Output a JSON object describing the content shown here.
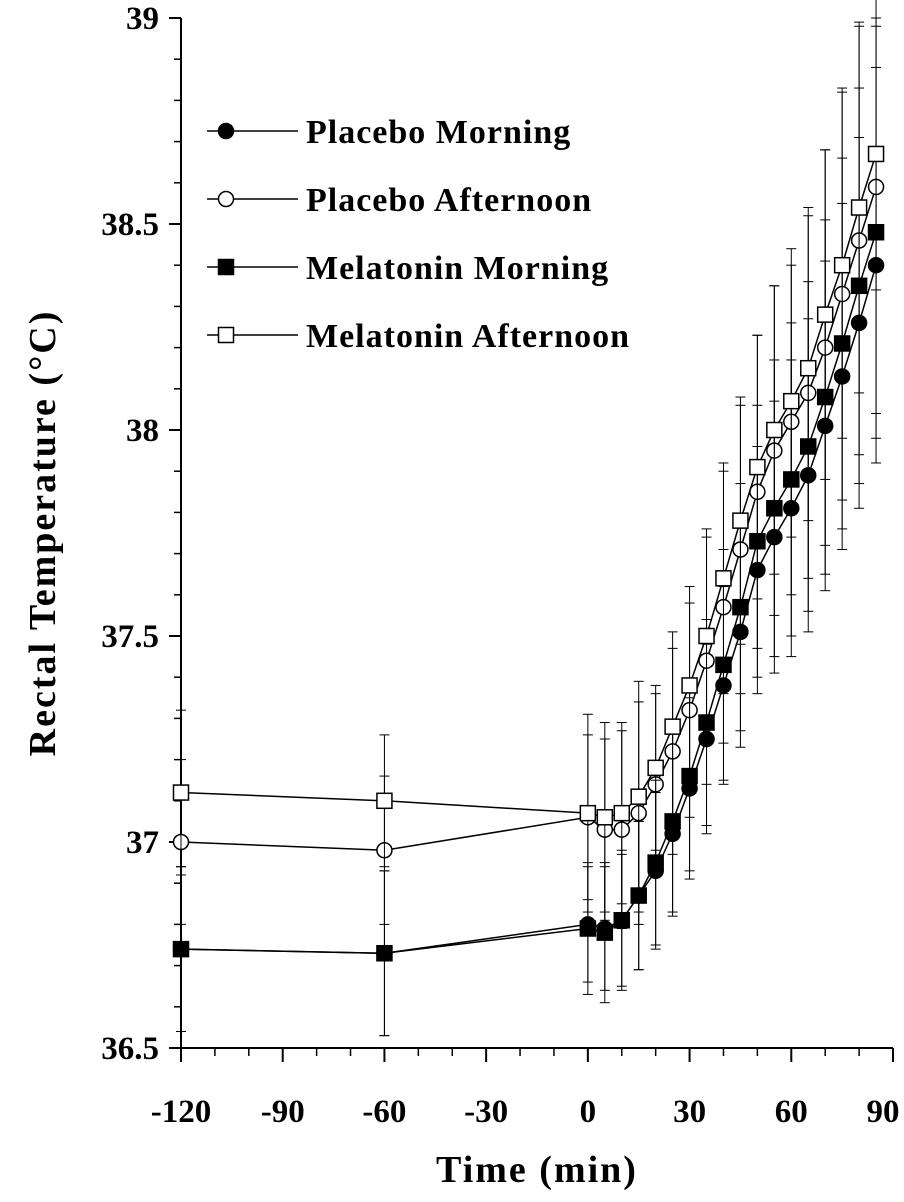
{
  "chart_data": {
    "type": "line",
    "xlabel": "Time (min)",
    "ylabel": "Rectal Temperature (°C)",
    "xlim": [
      -120,
      90
    ],
    "ylim": [
      36.5,
      39
    ],
    "x_ticks": [
      -120,
      -90,
      -60,
      -30,
      0,
      30,
      60,
      90
    ],
    "x_tick_labels": [
      "-120",
      "-90",
      "-60",
      "-30",
      "0",
      "30",
      "60",
      "90"
    ],
    "y_ticks": [
      36.5,
      37,
      37.5,
      38,
      38.5,
      39
    ],
    "y_tick_labels": [
      "36.5",
      "37",
      "37.5",
      "38",
      "38.5",
      "39"
    ],
    "grid": false,
    "legend_position": "top-left",
    "x": [
      -120,
      -60,
      0,
      5,
      10,
      15,
      20,
      25,
      30,
      35,
      40,
      45,
      50,
      55,
      60,
      65,
      70,
      75,
      80,
      85
    ],
    "series": [
      {
        "name": "Placebo Morning",
        "marker": "filled-circle",
        "values": [
          36.74,
          36.73,
          36.8,
          36.79,
          36.81,
          36.87,
          36.93,
          37.02,
          37.13,
          37.25,
          37.38,
          37.51,
          37.66,
          37.74,
          37.81,
          37.89,
          38.01,
          38.13,
          38.26,
          38.4
        ],
        "errors": [
          0.2,
          0.2,
          0.14,
          0.15,
          0.16,
          0.18,
          0.19,
          0.2,
          0.22,
          0.23,
          0.24,
          0.28,
          0.3,
          0.33,
          0.36,
          0.38,
          0.4,
          0.42,
          0.45,
          0.48
        ]
      },
      {
        "name": "Placebo Afternoon",
        "marker": "open-circle",
        "values": [
          37.0,
          36.98,
          37.06,
          37.03,
          37.03,
          37.07,
          37.14,
          37.22,
          37.32,
          37.44,
          37.57,
          37.71,
          37.85,
          37.95,
          38.02,
          38.09,
          38.2,
          38.33,
          38.46,
          38.59
        ],
        "errors": [
          0.2,
          0.18,
          0.2,
          0.22,
          0.24,
          0.27,
          0.22,
          0.25,
          0.26,
          0.3,
          0.33,
          0.35,
          0.38,
          0.4,
          0.42,
          0.45,
          0.48,
          0.5,
          0.52,
          0.55
        ]
      },
      {
        "name": "Melatonin Morning",
        "marker": "filled-square",
        "values": [
          36.74,
          36.73,
          36.79,
          36.78,
          36.81,
          36.87,
          36.95,
          37.05,
          37.16,
          37.29,
          37.43,
          37.57,
          37.73,
          37.81,
          37.88,
          37.96,
          38.08,
          38.21,
          38.35,
          38.48
        ],
        "errors": [
          0.2,
          0.2,
          0.16,
          0.17,
          0.17,
          0.18,
          0.2,
          0.22,
          0.23,
          0.25,
          0.28,
          0.3,
          0.33,
          0.36,
          0.38,
          0.4,
          0.43,
          0.45,
          0.48,
          0.5
        ]
      },
      {
        "name": "Melatonin Afternoon",
        "marker": "open-square",
        "values": [
          37.12,
          37.1,
          37.07,
          37.06,
          37.07,
          37.11,
          37.18,
          37.28,
          37.38,
          37.5,
          37.64,
          37.78,
          37.91,
          38.0,
          38.07,
          38.15,
          38.28,
          38.4,
          38.54,
          38.67
        ],
        "errors": [
          0.2,
          0.16,
          0.24,
          0.23,
          0.22,
          0.28,
          0.2,
          0.23,
          0.24,
          0.26,
          0.28,
          0.3,
          0.32,
          0.35,
          0.33,
          0.37,
          0.4,
          0.42,
          0.45,
          0.33
        ]
      }
    ]
  }
}
